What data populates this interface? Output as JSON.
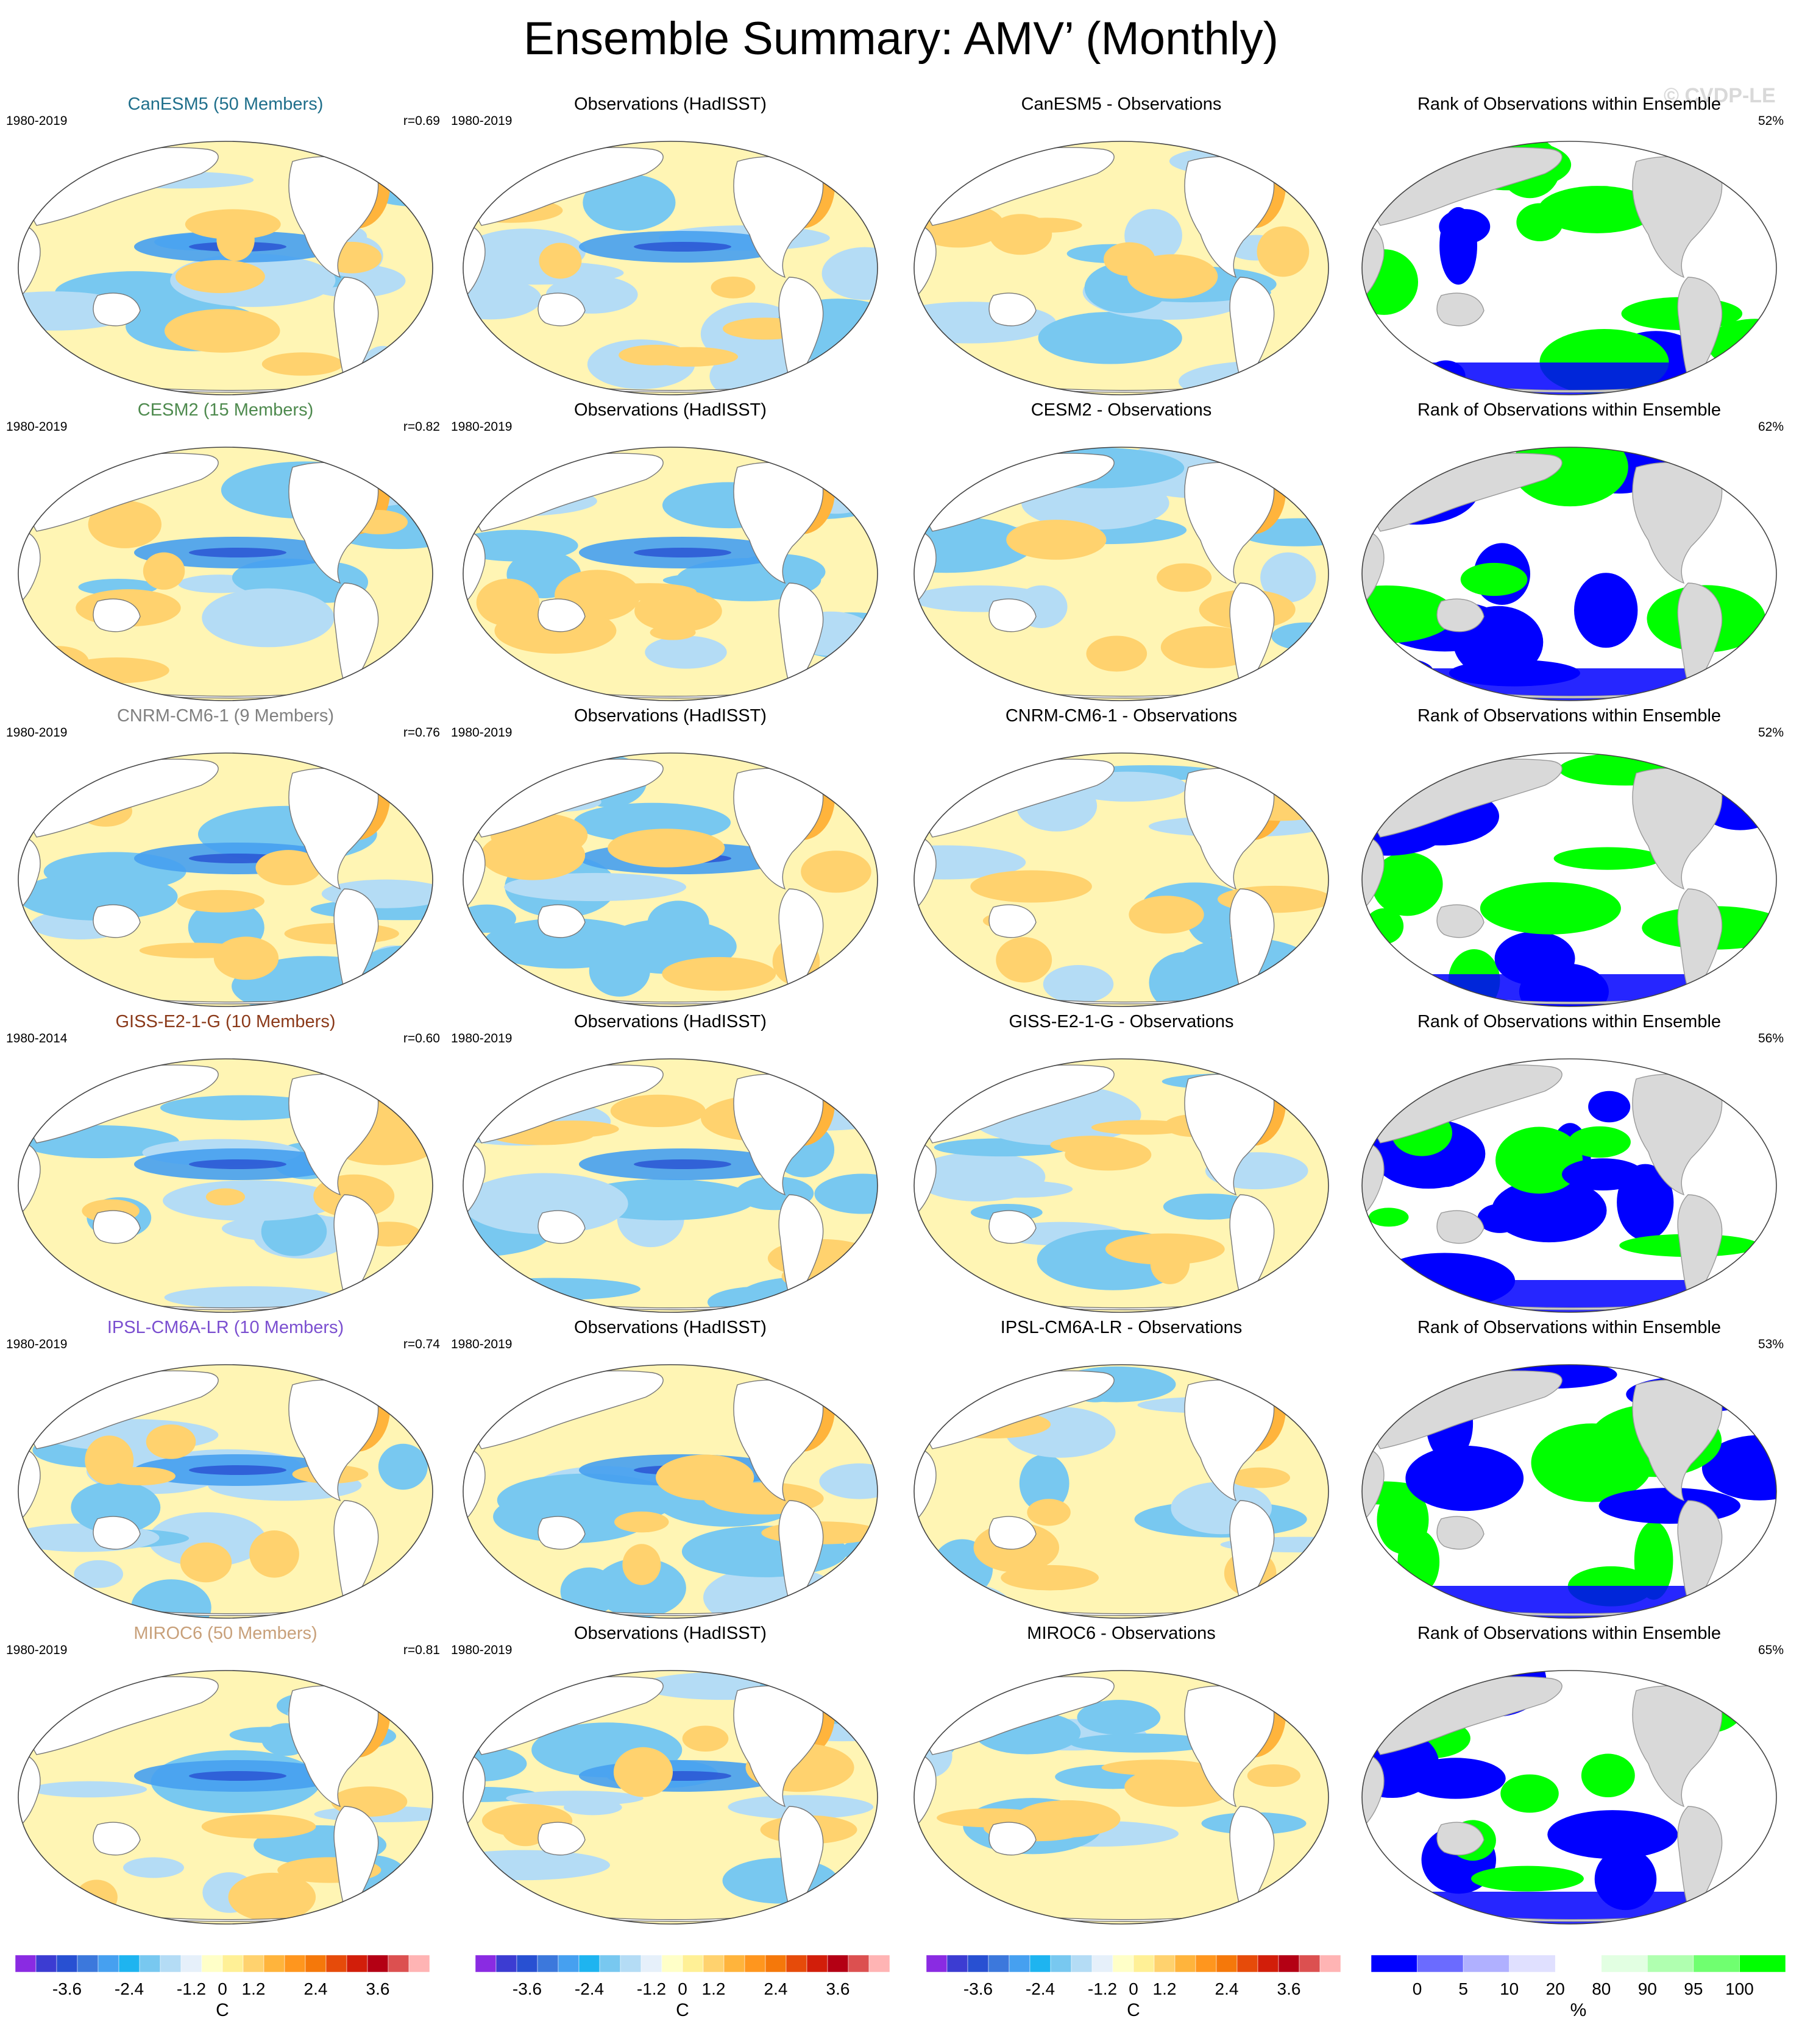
{
  "title": "Ensemble Summary: AMV’ (Monthly)",
  "watermark": "© CVDP-LE",
  "colors": {
    "model_titles": [
      "#1f6f8b",
      "#4e8a4e",
      "#808080",
      "#8b3a1a",
      "#7b4fd0",
      "#c8a07a"
    ],
    "warm": "#f5a623",
    "cool": "#6fb8e8",
    "land": "#ffffff",
    "rank_land": "#d9d9d9",
    "rank_green": "#00ff00",
    "rank_blue": "#0000ff"
  },
  "rows": [
    {
      "model": {
        "title": "CanESM5 (50 Members)",
        "years": "1980-2019",
        "r": "r=0.69"
      },
      "obs": {
        "title": "Observations (HadISST)",
        "years": "1980-2019"
      },
      "diff": {
        "title": "CanESM5 - Observations"
      },
      "rank": {
        "title": "Rank of Observations within Ensemble",
        "pct": "52%"
      }
    },
    {
      "model": {
        "title": "CESM2 (15 Members)",
        "years": "1980-2019",
        "r": "r=0.82"
      },
      "obs": {
        "title": "Observations (HadISST)",
        "years": "1980-2019"
      },
      "diff": {
        "title": "CESM2 - Observations"
      },
      "rank": {
        "title": "Rank of Observations within Ensemble",
        "pct": "62%"
      }
    },
    {
      "model": {
        "title": "CNRM-CM6-1 (9 Members)",
        "years": "1980-2019",
        "r": "r=0.76"
      },
      "obs": {
        "title": "Observations (HadISST)",
        "years": "1980-2019"
      },
      "diff": {
        "title": "CNRM-CM6-1 - Observations"
      },
      "rank": {
        "title": "Rank of Observations within Ensemble",
        "pct": "52%"
      }
    },
    {
      "model": {
        "title": "GISS-E2-1-G (10 Members)",
        "years": "1980-2014",
        "r": "r=0.60"
      },
      "obs": {
        "title": "Observations (HadISST)",
        "years": "1980-2019"
      },
      "diff": {
        "title": "GISS-E2-1-G - Observations"
      },
      "rank": {
        "title": "Rank of Observations within Ensemble",
        "pct": "56%"
      }
    },
    {
      "model": {
        "title": "IPSL-CM6A-LR (10 Members)",
        "years": "1980-2019",
        "r": "r=0.74"
      },
      "obs": {
        "title": "Observations (HadISST)",
        "years": "1980-2019"
      },
      "diff": {
        "title": "IPSL-CM6A-LR - Observations"
      },
      "rank": {
        "title": "Rank of Observations within Ensemble",
        "pct": "53%"
      }
    },
    {
      "model": {
        "title": "MIROC6 (50 Members)",
        "years": "1980-2019",
        "r": "r=0.81"
      },
      "obs": {
        "title": "Observations (HadISST)",
        "years": "1980-2019"
      },
      "diff": {
        "title": "MIROC6 - Observations"
      },
      "rank": {
        "title": "Rank of Observations within Ensemble",
        "pct": "65%"
      }
    }
  ],
  "colorbars": {
    "anomaly": {
      "labels": [
        "-3.6",
        "-2.4",
        "-1.2",
        "0",
        "1.2",
        "2.4",
        "3.6"
      ],
      "unit": "C",
      "colors": [
        "#8a2be2",
        "#3c3cd2",
        "#2850d2",
        "#3c78dc",
        "#46a0f0",
        "#1eb4f0",
        "#78c8f0",
        "#b4dcf5",
        "#e6f0fa",
        "#ffffc8",
        "#fff096",
        "#ffd26e",
        "#ffb43c",
        "#ff961e",
        "#f5780a",
        "#e64b0a",
        "#d21e0a",
        "#b40014",
        "#dc5050",
        "#ffb4b4"
      ]
    },
    "rank": {
      "labels": [
        "0",
        "5",
        "10",
        "20",
        "80",
        "90",
        "95",
        "100"
      ],
      "unit": "%",
      "colors": [
        "#0000ff",
        "#6b6bff",
        "#b0b0ff",
        "#e0e0ff",
        "#ffffff",
        "#e2ffe2",
        "#b0ffb0",
        "#70ff70",
        "#00ff00"
      ]
    }
  }
}
